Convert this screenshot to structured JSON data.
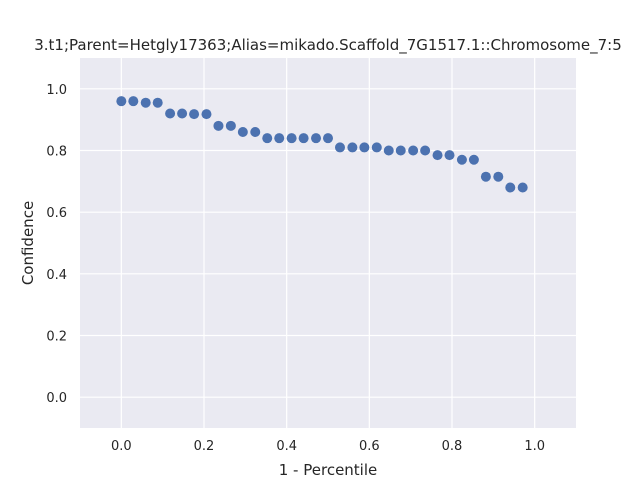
{
  "chart_data": {
    "type": "scatter",
    "title": "3.t1;Parent=Hetgly17363;Alias=mikado.Scaffold_7G1517.1::Chromosome_7:5",
    "xlabel": "1 - Percentile",
    "ylabel": "Confidence",
    "xlim": [
      -0.1,
      1.1
    ],
    "ylim": [
      -0.1,
      1.1
    ],
    "xticks": [
      "0.0",
      "0.2",
      "0.4",
      "0.6",
      "0.8",
      "1.0"
    ],
    "yticks": [
      "0.0",
      "0.2",
      "0.4",
      "0.6",
      "0.8",
      "1.0"
    ],
    "grid": true,
    "point_color": "#4c72b0",
    "background_color": "#eaeaf2",
    "points": [
      {
        "x": 0.0,
        "y": 0.96
      },
      {
        "x": 0.029,
        "y": 0.96
      },
      {
        "x": 0.059,
        "y": 0.955
      },
      {
        "x": 0.088,
        "y": 0.955
      },
      {
        "x": 0.118,
        "y": 0.92
      },
      {
        "x": 0.147,
        "y": 0.92
      },
      {
        "x": 0.176,
        "y": 0.918
      },
      {
        "x": 0.206,
        "y": 0.918
      },
      {
        "x": 0.235,
        "y": 0.88
      },
      {
        "x": 0.265,
        "y": 0.88
      },
      {
        "x": 0.294,
        "y": 0.86
      },
      {
        "x": 0.324,
        "y": 0.86
      },
      {
        "x": 0.353,
        "y": 0.84
      },
      {
        "x": 0.382,
        "y": 0.84
      },
      {
        "x": 0.412,
        "y": 0.84
      },
      {
        "x": 0.441,
        "y": 0.84
      },
      {
        "x": 0.471,
        "y": 0.84
      },
      {
        "x": 0.5,
        "y": 0.84
      },
      {
        "x": 0.529,
        "y": 0.81
      },
      {
        "x": 0.559,
        "y": 0.81
      },
      {
        "x": 0.588,
        "y": 0.81
      },
      {
        "x": 0.618,
        "y": 0.81
      },
      {
        "x": 0.647,
        "y": 0.8
      },
      {
        "x": 0.676,
        "y": 0.8
      },
      {
        "x": 0.706,
        "y": 0.8
      },
      {
        "x": 0.735,
        "y": 0.8
      },
      {
        "x": 0.765,
        "y": 0.785
      },
      {
        "x": 0.794,
        "y": 0.785
      },
      {
        "x": 0.824,
        "y": 0.77
      },
      {
        "x": 0.853,
        "y": 0.77
      },
      {
        "x": 0.882,
        "y": 0.715
      },
      {
        "x": 0.912,
        "y": 0.715
      },
      {
        "x": 0.941,
        "y": 0.68
      },
      {
        "x": 0.971,
        "y": 0.68
      }
    ]
  }
}
